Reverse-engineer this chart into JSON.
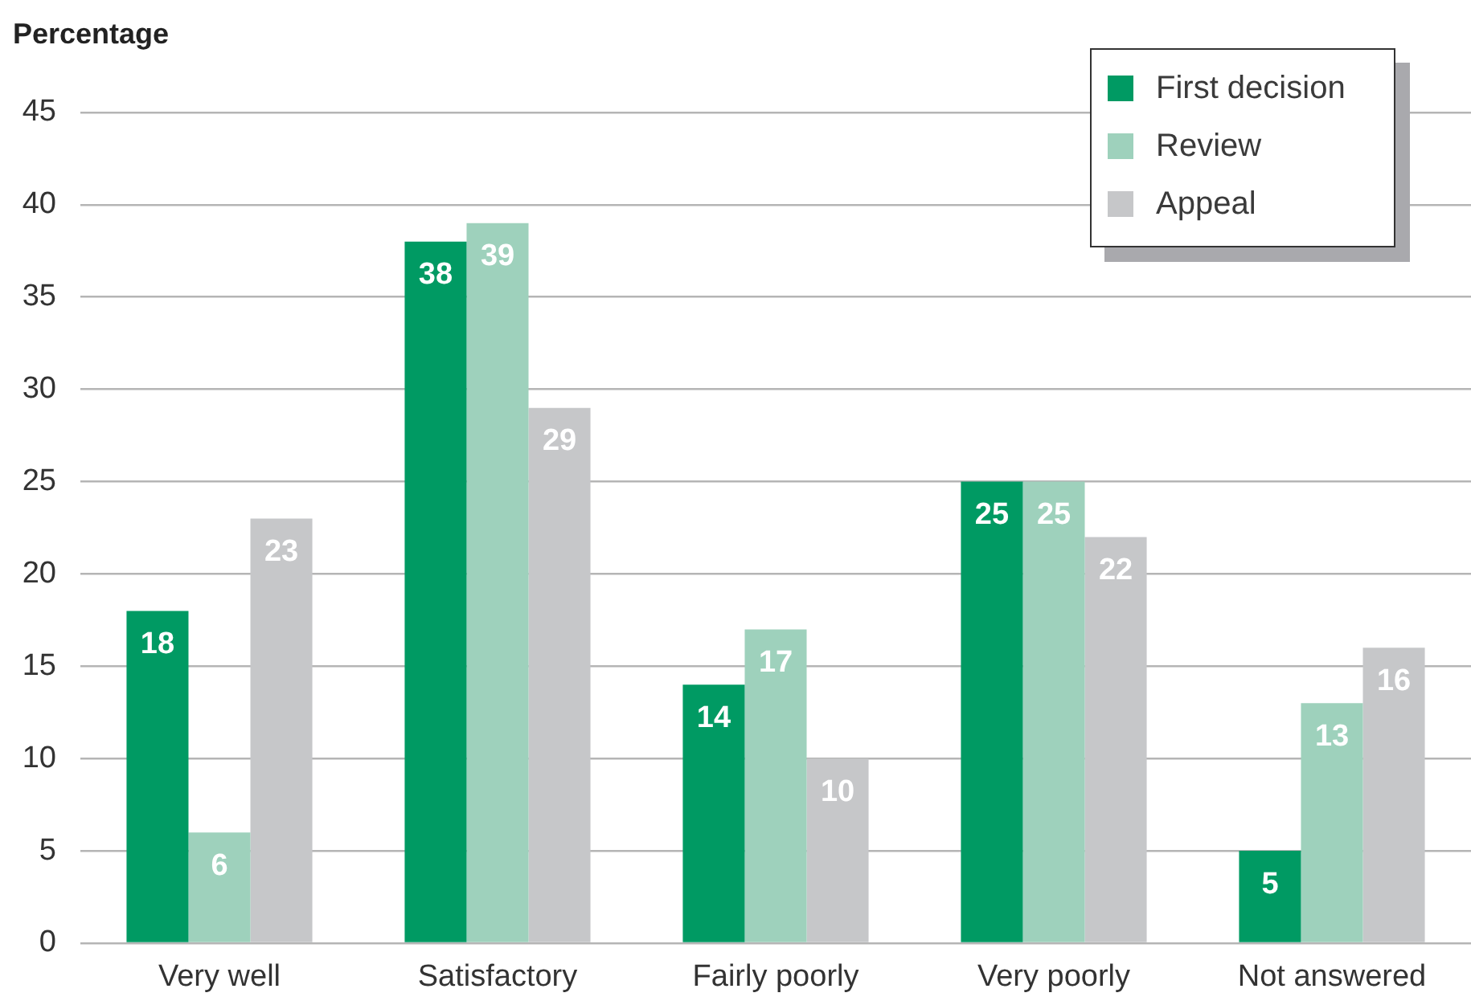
{
  "chart_data": {
    "type": "bar",
    "ylabel": "Percentage",
    "categories": [
      "Very well",
      "Satisfactory",
      "Fairly poorly",
      "Very poorly",
      "Not answered"
    ],
    "series": [
      {
        "name": "First decision",
        "color": "#009a63",
        "values": [
          18,
          38,
          14,
          25,
          5
        ]
      },
      {
        "name": "Review",
        "color": "#9ed1bc",
        "values": [
          6,
          39,
          17,
          25,
          13
        ]
      },
      {
        "name": "Appeal",
        "color": "#c6c7c9",
        "values": [
          23,
          29,
          10,
          22,
          16
        ]
      }
    ],
    "ylim": [
      0,
      45
    ],
    "yticks": [
      0,
      5,
      10,
      15,
      20,
      25,
      30,
      35,
      40,
      45
    ],
    "grid": "y",
    "legend": "top right",
    "data_labels": true
  }
}
